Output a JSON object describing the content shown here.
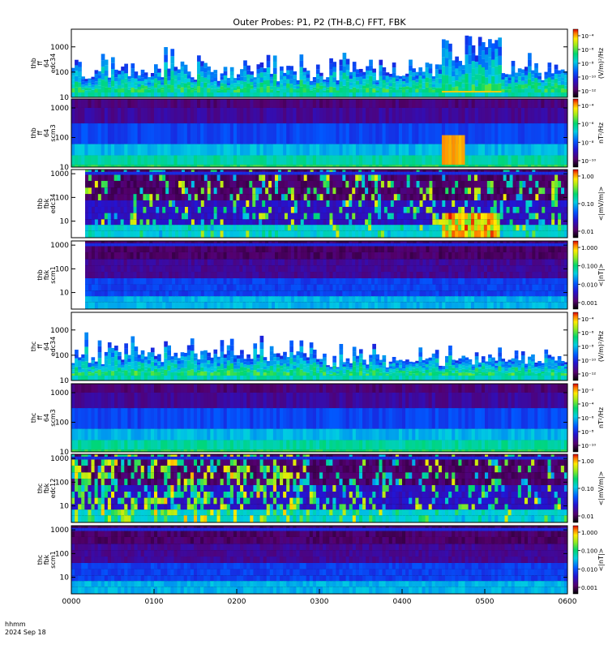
{
  "title": "Outer Probes: P1, P2 (TH-B,C) FFT, FBK",
  "time_axis": {
    "ticks": [
      "0000",
      "0100",
      "0200",
      "0300",
      "0400",
      "0500",
      "0600"
    ],
    "label_line1": "hhmm",
    "label_line2": "2024 Sep 18"
  },
  "chart_data": [
    {
      "type": "heatmap",
      "panel": 1,
      "ylabel": [
        "thb",
        "ff",
        "64",
        "edc34"
      ],
      "yticks": [
        "10",
        "100",
        "1000"
      ],
      "yscale": "log",
      "ylim": [
        10,
        5000
      ],
      "colorbar_label": "(V/m)²/Hz",
      "colorbar_ticks": [
        "10⁻¹²",
        "10⁻¹⁰",
        "10⁻⁸",
        "10⁻⁶",
        "10⁻⁴"
      ],
      "colorbar_scale": "log",
      "regime": "wave",
      "x_range": [
        "0000",
        "0600"
      ]
    },
    {
      "type": "heatmap",
      "panel": 2,
      "ylabel": [
        "thb",
        "ff",
        "64",
        "scm3"
      ],
      "yticks": [
        "10",
        "100",
        "1000"
      ],
      "yscale": "log",
      "ylim": [
        10,
        2000
      ],
      "colorbar_label": "nT²/Hz",
      "colorbar_ticks": [
        "10⁻¹⁰",
        "10⁻⁸",
        "10⁻⁶",
        "10⁻⁴"
      ],
      "colorbar_scale": "log",
      "regime": "scm",
      "x_range": [
        "0000",
        "0600"
      ]
    },
    {
      "type": "heatmap",
      "panel": 3,
      "ylabel": [
        "thb",
        "fbk",
        "edc34"
      ],
      "yticks": [
        "10",
        "100",
        "1000"
      ],
      "yscale": "log",
      "ylim": [
        2,
        1500
      ],
      "colorbar_label": "<|mV/m|>",
      "colorbar_ticks": [
        "0.01",
        "0.10",
        "1.00"
      ],
      "colorbar_scale": "log",
      "regime": "fbk",
      "x_range": [
        "0010",
        "0600"
      ]
    },
    {
      "type": "heatmap",
      "panel": 4,
      "ylabel": [
        "thb",
        "fbk",
        "scm1"
      ],
      "yticks": [
        "10",
        "100",
        "1000"
      ],
      "yscale": "log",
      "ylim": [
        2,
        1500
      ],
      "colorbar_label": "<|nT|>",
      "colorbar_ticks": [
        "0.001",
        "0.010",
        "0.100",
        "1.000"
      ],
      "colorbar_scale": "log",
      "regime": "fbkscm",
      "x_range": [
        "0010",
        "0600"
      ]
    },
    {
      "type": "heatmap",
      "panel": 5,
      "ylabel": [
        "thc",
        "ff",
        "64",
        "edc34"
      ],
      "yticks": [
        "10",
        "100",
        "1000"
      ],
      "yscale": "log",
      "ylim": [
        10,
        5000
      ],
      "colorbar_label": "(V/m)²/Hz",
      "colorbar_ticks": [
        "10⁻¹²",
        "10⁻¹⁰",
        "10⁻⁸",
        "10⁻⁶",
        "10⁻⁴"
      ],
      "colorbar_scale": "log",
      "regime": "wave",
      "x_range": [
        "0000",
        "0600"
      ]
    },
    {
      "type": "heatmap",
      "panel": 6,
      "ylabel": [
        "thc",
        "ff",
        "64",
        "scm3"
      ],
      "yticks": [
        "10",
        "100",
        "1000"
      ],
      "yscale": "log",
      "ylim": [
        10,
        2000
      ],
      "colorbar_label": "nT²/Hz",
      "colorbar_ticks": [
        "10⁻¹⁰",
        "10⁻⁸",
        "10⁻⁶",
        "10⁻⁴",
        "10⁻²"
      ],
      "colorbar_scale": "log",
      "regime": "scm",
      "x_range": [
        "0000",
        "0600"
      ]
    },
    {
      "type": "heatmap",
      "panel": 7,
      "ylabel": [
        "thc",
        "fbk",
        "edc12"
      ],
      "yticks": [
        "10",
        "100",
        "1000"
      ],
      "yscale": "log",
      "ylim": [
        2,
        1500
      ],
      "colorbar_label": "<|mV/m|>",
      "colorbar_ticks": [
        "0.01",
        "0.10",
        "1.00"
      ],
      "colorbar_scale": "log",
      "regime": "fbk",
      "x_range": [
        "0000",
        "0600"
      ]
    },
    {
      "type": "heatmap",
      "panel": 8,
      "ylabel": [
        "thc",
        "fbk",
        "scm1"
      ],
      "yticks": [
        "10",
        "100",
        "1000"
      ],
      "yscale": "log",
      "ylim": [
        2,
        1500
      ],
      "colorbar_label": "<|nT|>",
      "colorbar_ticks": [
        "0.001",
        "0.010",
        "0.100",
        "1.000"
      ],
      "colorbar_scale": "log",
      "regime": "fbkscm",
      "x_range": [
        "0000",
        "0600"
      ]
    }
  ]
}
